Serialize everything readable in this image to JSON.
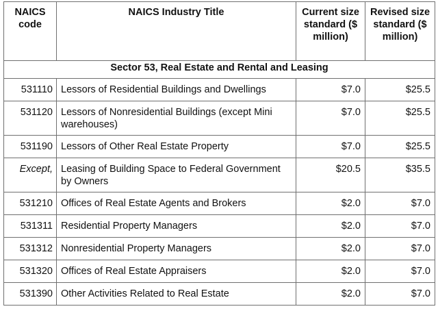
{
  "headers": {
    "code": "NAICS code",
    "title": "NAICS Industry Title",
    "current": "Current size standard ($ million)",
    "revised": "Revised size standard ($ million)"
  },
  "sector": "Sector 53, Real Estate and Rental and Leasing",
  "rows": [
    {
      "code": "531110",
      "title": "Lessors of Residential Buildings and Dwellings",
      "current": "$7.0",
      "revised": "$25.5"
    },
    {
      "code": "531120",
      "title": "Lessors of Nonresidential Buildings (except Mini warehouses)",
      "current": "$7.0",
      "revised": "$25.5"
    },
    {
      "code": "531190",
      "title": "Lessors of Other Real Estate Property",
      "current": "$7.0",
      "revised": "$25.5"
    },
    {
      "code": "Except,",
      "title": "Leasing of Building Space to Federal Government by Owners",
      "current": "$20.5",
      "revised": "$35.5"
    },
    {
      "code": "531210",
      "title": "Offices of Real Estate Agents and Brokers",
      "current": "$2.0",
      "revised": "$7.0"
    },
    {
      "code": "531311",
      "title": "Residential Property Managers",
      "current": "$2.0",
      "revised": "$7.0"
    },
    {
      "code": "531312",
      "title": "Nonresidential Property Managers",
      "current": "$2.0",
      "revised": "$7.0"
    },
    {
      "code": "531320",
      "title": "Offices of Real Estate Appraisers",
      "current": "$2.0",
      "revised": "$7.0"
    },
    {
      "code": "531390",
      "title": "Other Activities Related to Real Estate",
      "current": "$2.0",
      "revised": "$7.0"
    }
  ]
}
